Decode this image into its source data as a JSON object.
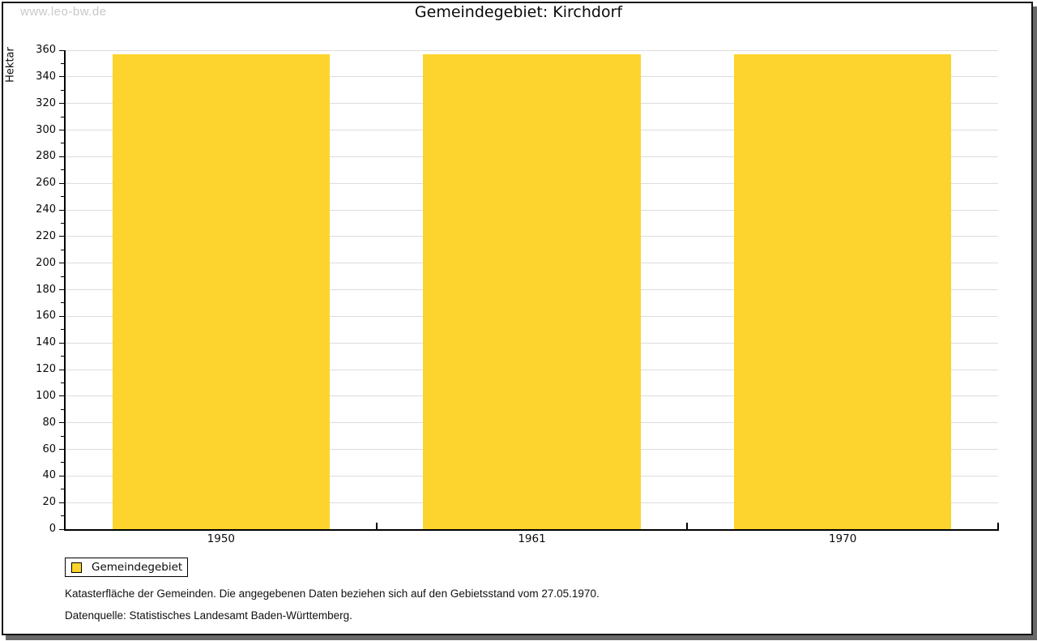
{
  "watermark": "www.leo-bw.de",
  "title": "Gemeindegebiet: Kirchdorf",
  "chart_data": {
    "type": "bar",
    "title": "Gemeindegebiet: Kirchdorf",
    "categories": [
      "1950",
      "1961",
      "1970"
    ],
    "series": [
      {
        "name": "Gemeindegebiet",
        "values": [
          357,
          357,
          357
        ]
      }
    ],
    "xlabel": "",
    "ylabel": "Hektar",
    "ylim": [
      0,
      360
    ],
    "yticks": [
      0,
      20,
      40,
      60,
      80,
      100,
      120,
      140,
      160,
      180,
      200,
      220,
      240,
      260,
      280,
      300,
      320,
      340,
      360
    ],
    "minor_tick_step": 10,
    "grid": true,
    "bar_color": "#FCD42D",
    "legend_position": "bottom-left"
  },
  "legend": {
    "label": "Gemeindegebiet",
    "swatch_color": "#FCD42D"
  },
  "footer": {
    "line1": "Katasterfläche der Gemeinden. Die angegebenen Daten beziehen sich auf den Gebietsstand vom 27.05.1970.",
    "line2": "Datenquelle: Statistisches Landesamt Baden-Württemberg."
  },
  "colors": {
    "bar": "#FCD42D",
    "gridline": "#dcdcdc",
    "axis": "#000000",
    "watermark": "#c9c9c9",
    "frame_shadow": "#696969"
  }
}
